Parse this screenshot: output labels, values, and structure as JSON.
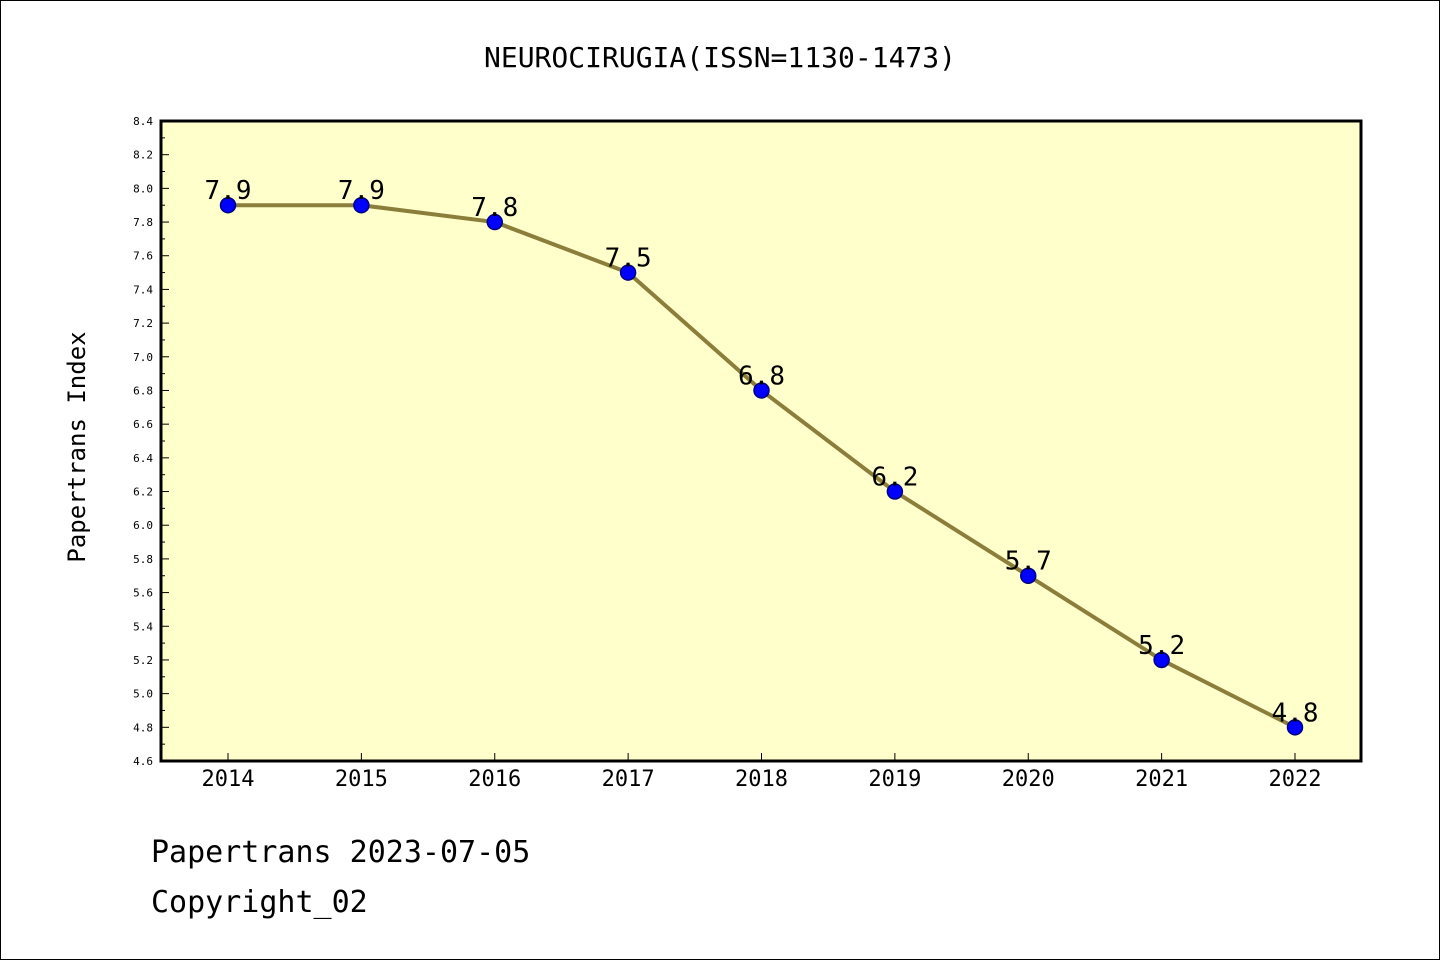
{
  "chart_data": {
    "type": "line",
    "title": "NEUROCIRUGIA(ISSN=1130-1473)",
    "xlabel": "",
    "ylabel": "Papertrans Index",
    "categories": [
      "2014",
      "2015",
      "2016",
      "2017",
      "2018",
      "2019",
      "2020",
      "2021",
      "2022"
    ],
    "values": [
      7.9,
      7.9,
      7.8,
      7.5,
      6.8,
      6.2,
      5.7,
      5.2,
      4.8
    ],
    "data_labels": [
      "7.9",
      "7.9",
      "7.8",
      "7.5",
      "6.8",
      "6.2",
      "5.7",
      "5.2",
      "4.8"
    ],
    "ylim": [
      4.6,
      8.4
    ],
    "yticks": [
      "4.6",
      "4.8",
      "5.0",
      "5.2",
      "5.4",
      "5.6",
      "5.8",
      "6.0",
      "6.2",
      "6.4",
      "6.6",
      "6.8",
      "7.0",
      "7.2",
      "7.4",
      "7.6",
      "7.8",
      "8.0",
      "8.2",
      "8.4"
    ],
    "grid": false,
    "legend": "none",
    "colors": {
      "plot_background": "#ffffcc",
      "line": "#8b7d3a",
      "marker": "#0000ff",
      "marker_edge": "#000080"
    }
  },
  "footer": {
    "date_line": "Papertrans 2023-07-05",
    "copyright_line": "Copyright_02"
  }
}
